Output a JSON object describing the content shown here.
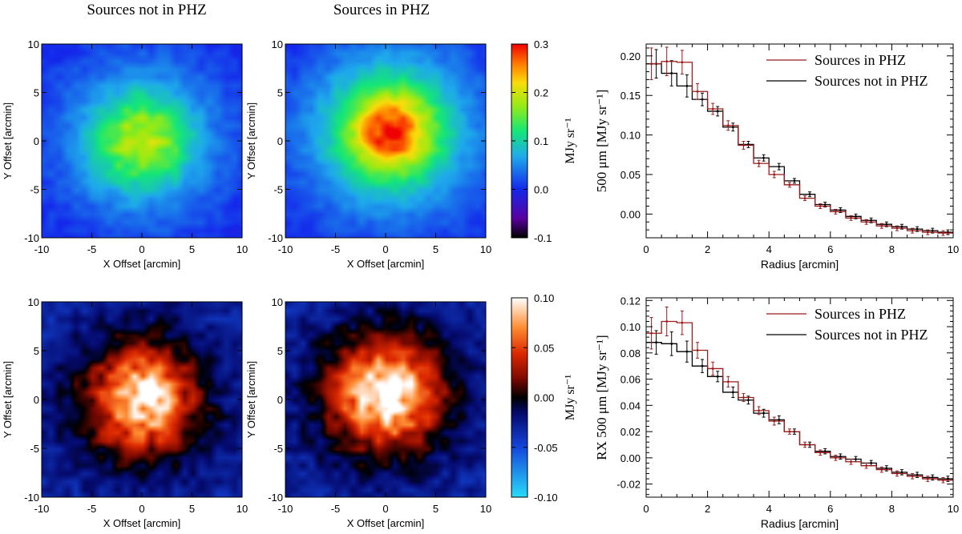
{
  "figure": {
    "column_titles": [
      "Sources not in PHZ",
      "Sources in PHZ"
    ]
  },
  "chart_data": [
    {
      "type": "heatmap",
      "id": "map-top-left",
      "row": 0,
      "col": 0,
      "description_title": "Sources not in PHZ",
      "xlabel": "X Offset [arcmin]",
      "ylabel": "Y Offset [arcmin]",
      "xlim": [
        -10,
        10
      ],
      "ylim": [
        -10,
        10
      ],
      "xticks": [
        "-10",
        "-5",
        "0",
        "5",
        "10"
      ],
      "yticks": [
        "-10",
        "-5",
        "0",
        "5",
        "10"
      ],
      "colorscale": "rainbow",
      "peak": 0.2,
      "peak_x": 0,
      "peak_y": 0,
      "core_width_arcmin": 3.0,
      "halo_width_arcmin": 6.5,
      "background": -0.01
    },
    {
      "type": "heatmap",
      "id": "map-top-right",
      "row": 0,
      "col": 1,
      "description_title": "Sources in PHZ",
      "xlabel": "X Offset [arcmin]",
      "ylabel": "Y Offset [arcmin]",
      "xlim": [
        -10,
        10
      ],
      "ylim": [
        -10,
        10
      ],
      "xticks": [
        "-10",
        "-5",
        "0",
        "5",
        "10"
      ],
      "yticks": [
        "-10",
        "-5",
        "0",
        "5",
        "10"
      ],
      "colorscale": "rainbow",
      "peak": 0.3,
      "peak_x": 0.5,
      "peak_y": 1,
      "core_width_arcmin": 2.8,
      "halo_width_arcmin": 6.5,
      "background": -0.01
    },
    {
      "type": "heatmap",
      "id": "map-bottom-left",
      "row": 1,
      "col": 0,
      "xlabel": "X Offset [arcmin]",
      "ylabel": "Y Offset [arcmin]",
      "xlim": [
        -10,
        10
      ],
      "ylim": [
        -10,
        10
      ],
      "xticks": [
        "-10",
        "-5",
        "0",
        "5",
        "10"
      ],
      "yticks": [
        "-10",
        "-5",
        "0",
        "5",
        "10"
      ],
      "colorscale": "diverging",
      "peak": 0.095,
      "peak_x": 0,
      "peak_y": 0,
      "core_width_arcmin": 3.2,
      "halo_width_arcmin": 5.5,
      "background": -0.035
    },
    {
      "type": "heatmap",
      "id": "map-bottom-right",
      "row": 1,
      "col": 1,
      "xlabel": "X Offset [arcmin]",
      "ylabel": "Y Offset [arcmin]",
      "xlim": [
        -10,
        10
      ],
      "ylim": [
        -10,
        10
      ],
      "xticks": [
        "-10",
        "-5",
        "0",
        "5",
        "10"
      ],
      "yticks": [
        "-10",
        "-5",
        "0",
        "5",
        "10"
      ],
      "colorscale": "diverging",
      "peak": 0.11,
      "peak_x": 0,
      "peak_y": 0.5,
      "core_width_arcmin": 3.2,
      "halo_width_arcmin": 5.5,
      "background": -0.035
    },
    {
      "type": "colorbar",
      "id": "colorbar-top",
      "colorscale": "rainbow",
      "range": [
        -0.1,
        0.3
      ],
      "ticks": [
        -0.1,
        0.0,
        0.1,
        0.2,
        0.3
      ],
      "tick_labels": [
        "-0.1",
        "0.0",
        "0.1",
        "0.2",
        "0.3"
      ],
      "label": "MJy sr⁻¹"
    },
    {
      "type": "colorbar",
      "id": "colorbar-bottom",
      "colorscale": "diverging",
      "range": [
        -0.1,
        0.1
      ],
      "ticks": [
        -0.1,
        -0.05,
        0.0,
        0.05,
        0.1
      ],
      "tick_labels": [
        "-0.10",
        "-0.05",
        "0.00",
        "0.05",
        "0.10"
      ],
      "label": "MJy sr⁻¹"
    },
    {
      "type": "line",
      "id": "profile-top",
      "style": "step-with-errorbars",
      "xlabel": "Radius [arcmin]",
      "ylabel": "500 μm [MJy sr⁻¹]",
      "xlim": [
        0,
        10
      ],
      "ylim": [
        -0.03,
        0.215
      ],
      "xticks": [
        0,
        2,
        4,
        6,
        8,
        10
      ],
      "xtick_labels": [
        "0",
        "2",
        "4",
        "6",
        "8",
        "10"
      ],
      "yticks": [
        0.0,
        0.05,
        0.1,
        0.15,
        0.2
      ],
      "ytick_labels": [
        "0.00",
        "0.05",
        "0.10",
        "0.15",
        "0.20"
      ],
      "bin_width": 0.5,
      "x": [
        0.25,
        0.75,
        1.25,
        1.75,
        2.25,
        2.75,
        3.25,
        3.75,
        4.25,
        4.75,
        5.25,
        5.75,
        6.25,
        6.75,
        7.25,
        7.75,
        8.25,
        8.75,
        9.25,
        9.75
      ],
      "legend": [
        "Sources in PHZ",
        "Sources not in PHZ"
      ],
      "legend_position": "top-right",
      "series": [
        {
          "name": "Sources in PHZ",
          "color": "#9b1b1b",
          "values": [
            0.19,
            0.193,
            0.192,
            0.155,
            0.133,
            0.112,
            0.087,
            0.064,
            0.05,
            0.037,
            0.02,
            0.01,
            0.003,
            -0.005,
            -0.01,
            -0.015,
            -0.018,
            -0.021,
            -0.023,
            -0.024
          ],
          "errors": [
            0.02,
            0.018,
            0.015,
            0.01,
            0.007,
            0.006,
            0.005,
            0.004,
            0.004,
            0.003,
            0.003,
            0.003,
            0.003,
            0.003,
            0.003,
            0.003,
            0.003,
            0.003,
            0.003,
            0.003
          ]
        },
        {
          "name": "Sources not in PHZ",
          "color": "#000000",
          "values": [
            0.19,
            0.178,
            0.162,
            0.145,
            0.13,
            0.11,
            0.088,
            0.071,
            0.06,
            0.042,
            0.025,
            0.012,
            0.005,
            -0.003,
            -0.008,
            -0.013,
            -0.016,
            -0.019,
            -0.021,
            -0.023
          ],
          "errors": [
            0.018,
            0.016,
            0.014,
            0.008,
            0.006,
            0.005,
            0.004,
            0.004,
            0.004,
            0.003,
            0.003,
            0.003,
            0.003,
            0.003,
            0.003,
            0.003,
            0.003,
            0.003,
            0.003,
            0.003
          ]
        }
      ]
    },
    {
      "type": "line",
      "id": "profile-bottom",
      "style": "step-with-errorbars",
      "xlabel": "Radius [arcmin]",
      "ylabel": "RX 500 μm [MJy sr⁻¹]",
      "xlim": [
        0,
        10
      ],
      "ylim": [
        -0.03,
        0.122
      ],
      "xticks": [
        0,
        2,
        4,
        6,
        8,
        10
      ],
      "xtick_labels": [
        "0",
        "2",
        "4",
        "6",
        "8",
        "10"
      ],
      "yticks": [
        -0.02,
        0.0,
        0.02,
        0.04,
        0.06,
        0.08,
        0.1,
        0.12
      ],
      "ytick_labels": [
        "-0.02",
        "0.00",
        "0.02",
        "0.04",
        "0.06",
        "0.08",
        "0.10",
        "0.12"
      ],
      "bin_width": 0.5,
      "x": [
        0.25,
        0.75,
        1.25,
        1.75,
        2.25,
        2.75,
        3.25,
        3.75,
        4.25,
        4.75,
        5.25,
        5.75,
        6.25,
        6.75,
        7.25,
        7.75,
        8.25,
        8.75,
        9.25,
        9.75
      ],
      "legend": [
        "Sources in PHZ",
        "Sources not in PHZ"
      ],
      "legend_position": "top-right",
      "series": [
        {
          "name": "Sources in PHZ",
          "color": "#9b1b1b",
          "values": [
            0.095,
            0.104,
            0.103,
            0.082,
            0.068,
            0.058,
            0.046,
            0.036,
            0.028,
            0.02,
            0.01,
            0.004,
            0.0,
            -0.003,
            -0.006,
            -0.009,
            -0.012,
            -0.014,
            -0.016,
            -0.017
          ],
          "errors": [
            0.012,
            0.011,
            0.009,
            0.006,
            0.005,
            0.004,
            0.003,
            0.003,
            0.003,
            0.002,
            0.002,
            0.002,
            0.002,
            0.002,
            0.002,
            0.002,
            0.002,
            0.002,
            0.002,
            0.002
          ]
        },
        {
          "name": "Sources not in PHZ",
          "color": "#000000",
          "values": [
            0.088,
            0.087,
            0.081,
            0.07,
            0.062,
            0.05,
            0.044,
            0.034,
            0.029,
            0.02,
            0.01,
            0.005,
            0.001,
            -0.001,
            -0.004,
            -0.008,
            -0.011,
            -0.013,
            -0.015,
            -0.016
          ],
          "errors": [
            0.009,
            0.009,
            0.008,
            0.005,
            0.004,
            0.004,
            0.003,
            0.003,
            0.003,
            0.002,
            0.002,
            0.002,
            0.002,
            0.002,
            0.002,
            0.002,
            0.002,
            0.002,
            0.002,
            0.002
          ]
        }
      ]
    }
  ]
}
